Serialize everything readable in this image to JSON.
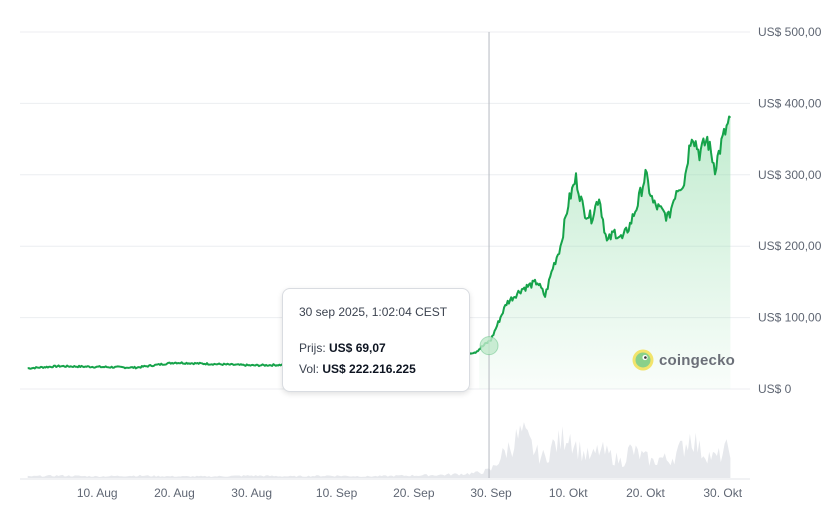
{
  "chart_data": {
    "type": "line",
    "title": "",
    "xlabel": "",
    "ylabel": "",
    "x_ticks": [
      "10. Aug",
      "20. Aug",
      "30. Aug",
      "10. Sep",
      "20. Sep",
      "30. Sep",
      "10. Okt",
      "20. Okt",
      "30. Okt"
    ],
    "y_ticks": [
      "US$ 500,00",
      "US$ 400,00",
      "US$ 300,00",
      "US$ 200,00",
      "US$ 100,00",
      "US$ 0"
    ],
    "ylim": [
      0,
      500
    ],
    "grid": true,
    "x": [
      "2025-08-01",
      "2025-08-05",
      "2025-08-10",
      "2025-08-15",
      "2025-08-20",
      "2025-08-25",
      "2025-08-30",
      "2025-09-04",
      "2025-09-09",
      "2025-09-14",
      "2025-09-19",
      "2025-09-24",
      "2025-09-28",
      "2025-09-30",
      "2025-10-02",
      "2025-10-04",
      "2025-10-06",
      "2025-10-07",
      "2025-10-08",
      "2025-10-09",
      "2025-10-10",
      "2025-10-11",
      "2025-10-12",
      "2025-10-13",
      "2025-10-14",
      "2025-10-15",
      "2025-10-16",
      "2025-10-17",
      "2025-10-18",
      "2025-10-19",
      "2025-10-20",
      "2025-10-21",
      "2025-10-22",
      "2025-10-23",
      "2025-10-24",
      "2025-10-25",
      "2025-10-26",
      "2025-10-27",
      "2025-10-28",
      "2025-10-29",
      "2025-10-30",
      "2025-10-31"
    ],
    "series": [
      {
        "values": [
          29,
          32,
          31,
          30,
          37,
          35,
          33,
          34,
          36,
          37,
          40,
          45,
          52,
          69,
          120,
          140,
          150,
          130,
          170,
          200,
          260,
          295,
          250,
          240,
          270,
          205,
          220,
          210,
          230,
          260,
          300,
          260,
          250,
          240,
          280,
          290,
          360,
          330,
          350,
          310,
          350,
          380
        ]
      }
    ],
    "volume": [
      2,
      3,
      2,
      3,
      2,
      2,
      3,
      2,
      3,
      2,
      3,
      4,
      6,
      10,
      35,
      55,
      30,
      25,
      40,
      45,
      60,
      40,
      30,
      25,
      35,
      30,
      25,
      20,
      35,
      30,
      25,
      20,
      25,
      22,
      30,
      40,
      55,
      35,
      30,
      25,
      30,
      40
    ],
    "tooltip": {
      "date": "30 sep 2025, 1:02:04 CEST",
      "price_label": "Prijs:",
      "price_value": "US$ 69,07",
      "volume_label": "Vol:",
      "volume_value": "US$ 222.216.225",
      "x": "2025-09-30",
      "y": 69.07
    },
    "colors": {
      "line": "#16a34a",
      "fill": "#d7f3df",
      "volume": "#e6e8ec",
      "grid": "#eceef1",
      "crosshair": "#b5b9c0"
    }
  },
  "watermark": {
    "text": "coingecko",
    "icon": "gecko-logo-icon"
  }
}
